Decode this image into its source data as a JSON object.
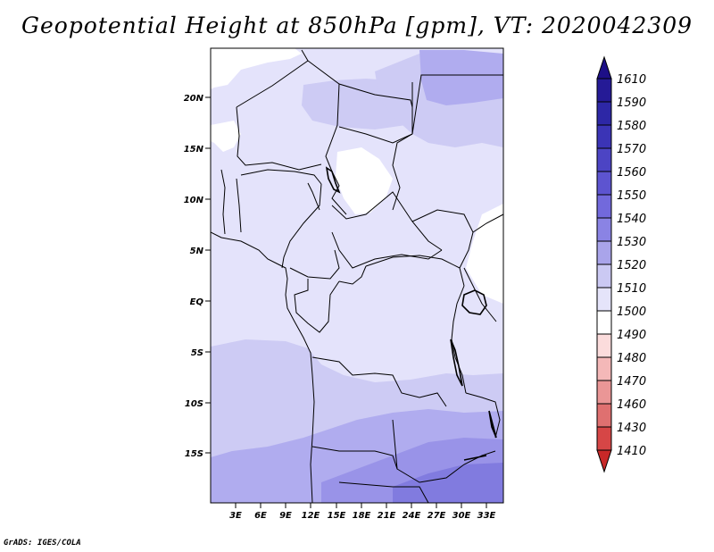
{
  "title": "Geopotential Height at 850hPa [gpm], VT: 2020042309",
  "credit": "GrADS: IGES/COLA",
  "latitude_labels": [
    "20N",
    "15N",
    "10N",
    "5N",
    "EQ",
    "5S",
    "10S",
    "15S"
  ],
  "longitude_labels": [
    "3E",
    "6E",
    "9E",
    "12E",
    "15E",
    "18E",
    "21E",
    "24E",
    "27E",
    "30E",
    "33E"
  ],
  "colorbar": {
    "levels": [
      "1610",
      "1590",
      "1580",
      "1570",
      "1560",
      "1550",
      "1540",
      "1530",
      "1520",
      "1510",
      "1500",
      "1490",
      "1480",
      "1470",
      "1460",
      "1430",
      "1410"
    ],
    "colors": [
      "#1d0f87",
      "#251a96",
      "#2d27a6",
      "#3b34b6",
      "#4c44c4",
      "#5d54d0",
      "#7269dc",
      "#8a83e4",
      "#a9a4ea",
      "#cbc9f3",
      "#e5e4fa",
      "#ffffff",
      "#fbdcdc",
      "#f4b8b8",
      "#ea9696",
      "#df7070",
      "#d64646",
      "#c82828"
    ]
  },
  "map_colors": {
    "c1520": "#e4e3fb",
    "c1530": "#cdcbf4",
    "c1540": "#b0acef",
    "c1550": "#9993e8",
    "c1560": "#817bdf",
    "white": "#ffffff"
  }
}
